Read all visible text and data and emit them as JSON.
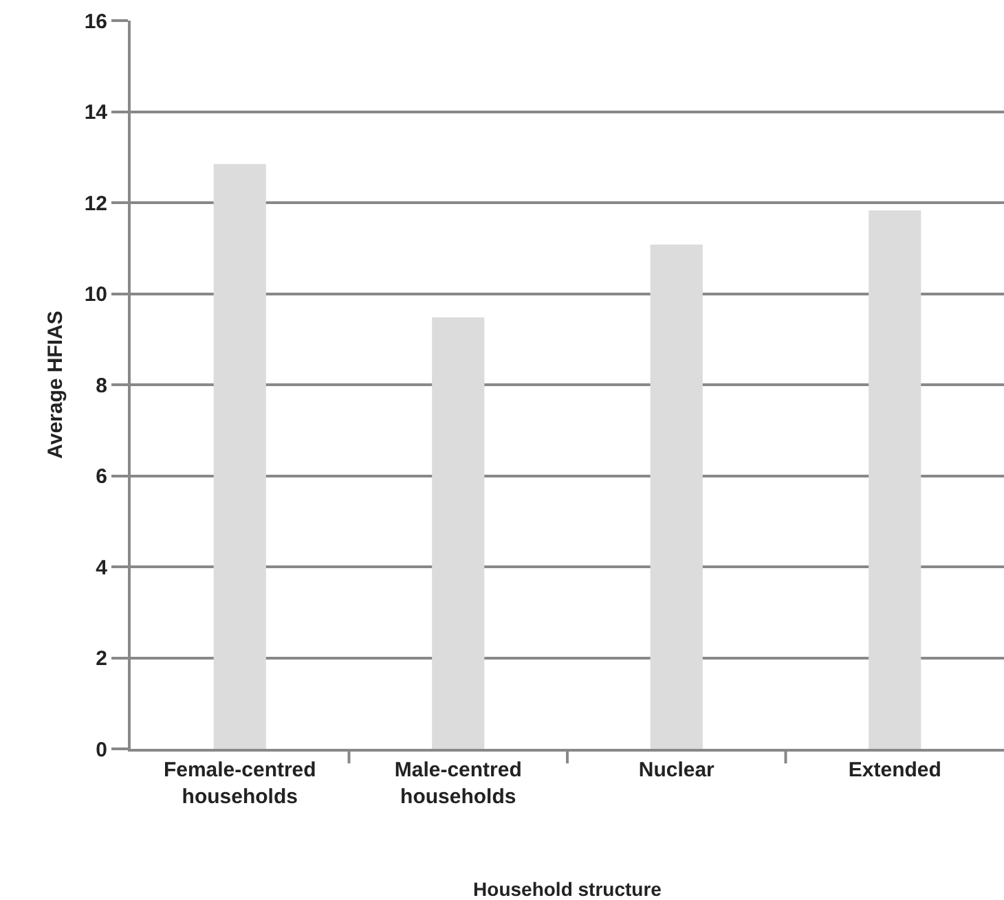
{
  "chart_data": {
    "type": "bar",
    "xlabel": "Household structure",
    "ylabel": "Average HFIAS",
    "categories": [
      "Female-centred households",
      "Male-centred households",
      "Nuclear",
      "Extended"
    ],
    "values": [
      12.85,
      9.48,
      11.08,
      11.83
    ],
    "color": "#dcdcdd",
    "ylim": [
      0,
      16
    ],
    "yticks": [
      0,
      2,
      4,
      6,
      8,
      10,
      12,
      14,
      16
    ],
    "grid": "y",
    "legend": false
  }
}
